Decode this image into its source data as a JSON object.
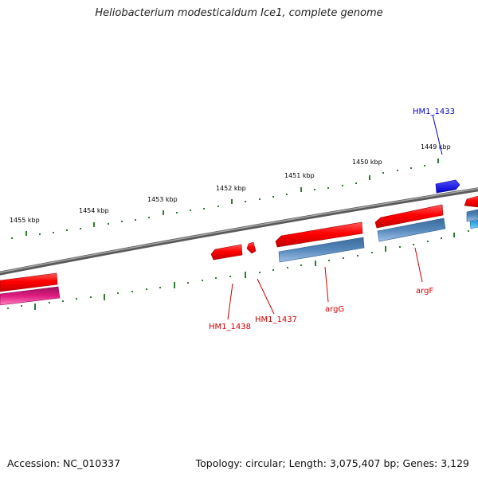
{
  "title": "Heliobacterium modesticaldum Ice1, complete genome",
  "footer": {
    "accession": "Accession: NC_010337",
    "summary": "Topology: circular; Length: 3,075,407 bp; Genes: 3,129"
  },
  "scale_labels": [
    "1455 kbp",
    "1454 kbp",
    "1453 kbp",
    "1452 kbp",
    "1451 kbp",
    "1450 kbp",
    "1449 kbp"
  ],
  "gene_labels": [
    {
      "text": "HM1_1433",
      "color": "#0000cc"
    },
    {
      "text": "HM1_1438",
      "color": "#cc0000"
    },
    {
      "text": "HM1_1437",
      "color": "#cc0000"
    },
    {
      "text": "argG",
      "color": "#cc0000"
    },
    {
      "text": "argF",
      "color": "#cc0000"
    }
  ],
  "colors": {
    "backbone": "#808080",
    "forward_cds": "#ff0000",
    "forward_blue": "#0000ee",
    "reverse_steelblue": "#4a7fb5",
    "reverse_magenta": "#d6187a",
    "ticks": "#1a6b1a"
  }
}
